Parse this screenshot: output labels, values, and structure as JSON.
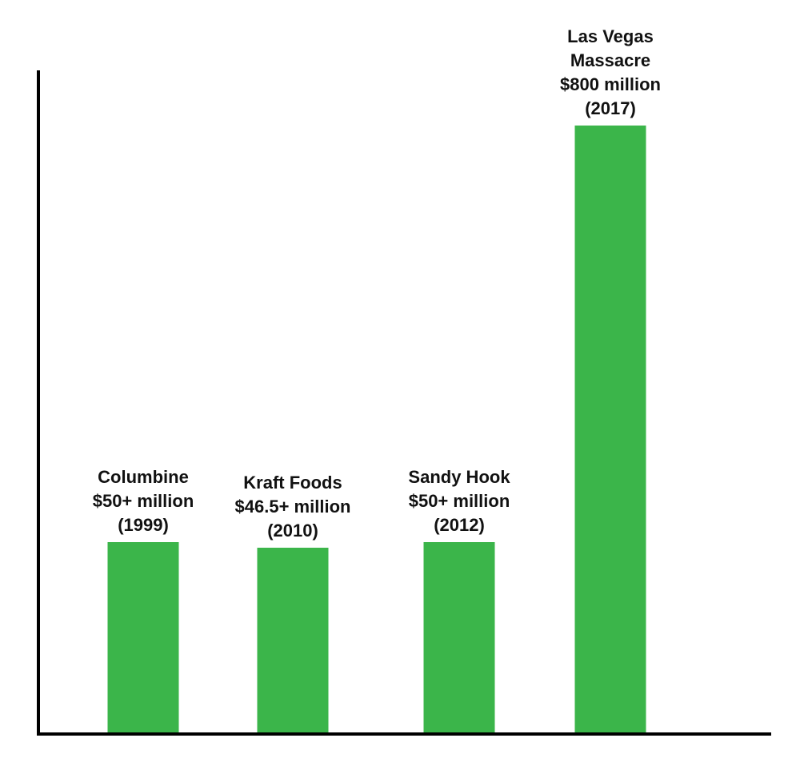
{
  "colors": {
    "bar": "#3bb54a",
    "axis": "#000000",
    "text": "#111111"
  },
  "chart_data": {
    "type": "bar",
    "title": "",
    "xlabel": "",
    "ylabel": "",
    "ylim": [
      0,
      800
    ],
    "grid": false,
    "unit": "million USD",
    "categories": [
      "Columbine",
      "Kraft Foods",
      "Sandy Hook",
      "Las Vegas Massacre"
    ],
    "values": [
      50,
      46.5,
      50,
      800
    ],
    "bars": [
      {
        "name": "Columbine",
        "value": 50,
        "label_lines": [
          "Columbine",
          "$50+ million",
          "(1999)"
        ]
      },
      {
        "name": "Kraft Foods",
        "value": 46.5,
        "label_lines": [
          "Kraft Foods",
          "$46.5+ million",
          "(2010)"
        ]
      },
      {
        "name": "Sandy Hook",
        "value": 50,
        "label_lines": [
          "Sandy Hook",
          "$50+ million",
          "(2012)"
        ]
      },
      {
        "name": "Las Vegas Massacre",
        "value": 800,
        "label_lines": [
          "Las Vegas",
          "Massacre",
          "$800 million",
          "(2017)"
        ]
      }
    ]
  }
}
